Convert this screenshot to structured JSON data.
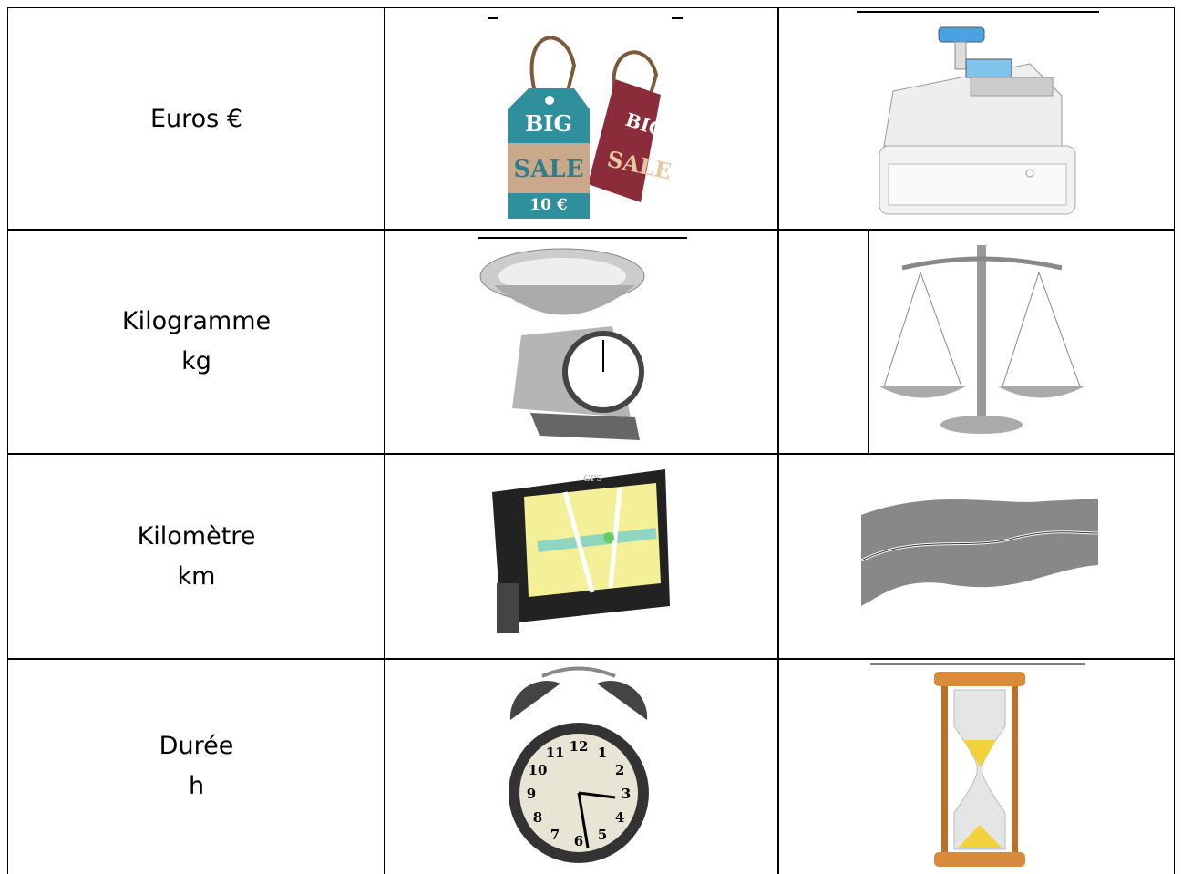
{
  "table": {
    "rows": [
      {
        "label": [
          "Euros €"
        ]
      },
      {
        "label": [
          "Kilogramme",
          "kg"
        ]
      },
      {
        "label": [
          "Kilomètre",
          "km"
        ]
      },
      {
        "label": [
          "Durée",
          "h"
        ]
      }
    ]
  },
  "images": {
    "sale_tag": {
      "front_top": "BIG",
      "front_bottom": "SALE",
      "price": "10 €",
      "back_top": "BIG",
      "back_bottom": "SALE"
    },
    "gps": {
      "brand": "GPS"
    },
    "clock": {
      "numerals": [
        12,
        1,
        2,
        3,
        4,
        5,
        6,
        7,
        8,
        9,
        10,
        11
      ]
    }
  }
}
